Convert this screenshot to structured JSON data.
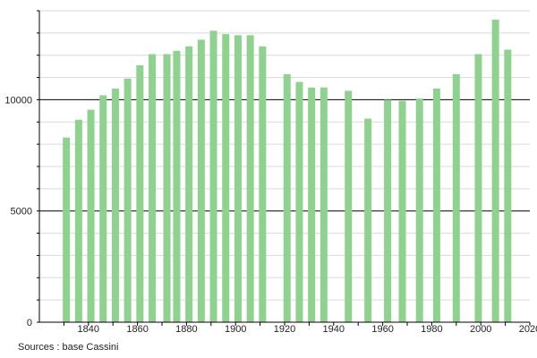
{
  "chart_data": {
    "type": "bar",
    "title": "",
    "xlabel": "",
    "ylabel": "",
    "xlim": [
      1820,
      2020
    ],
    "ylim": [
      0,
      14000
    ],
    "x_ticks": [
      "1840",
      "1860",
      "1880",
      "1900",
      "1920",
      "1940",
      "1960",
      "1980",
      "2000",
      "2020"
    ],
    "y_ticks": [
      "0",
      "5000",
      "10000"
    ],
    "grid": "horizontal",
    "bar_color": "#8fd18f",
    "x": [
      1831,
      1836,
      1841,
      1846,
      1851,
      1856,
      1861,
      1866,
      1872,
      1876,
      1881,
      1886,
      1891,
      1896,
      1901,
      1906,
      1911,
      1921,
      1926,
      1931,
      1936,
      1946,
      1954,
      1962,
      1968,
      1975,
      1982,
      1990,
      1999,
      2006,
      2011
    ],
    "values": [
      8300,
      9100,
      9550,
      10200,
      10500,
      10950,
      11550,
      12050,
      12050,
      12200,
      12400,
      12700,
      13100,
      12950,
      12900,
      12900,
      12400,
      11150,
      10800,
      10550,
      10550,
      10400,
      9150,
      10000,
      9950,
      10050,
      10500,
      11150,
      12050,
      13600,
      12250
    ]
  },
  "footer": {
    "source": "Sources : base Cassini"
  }
}
